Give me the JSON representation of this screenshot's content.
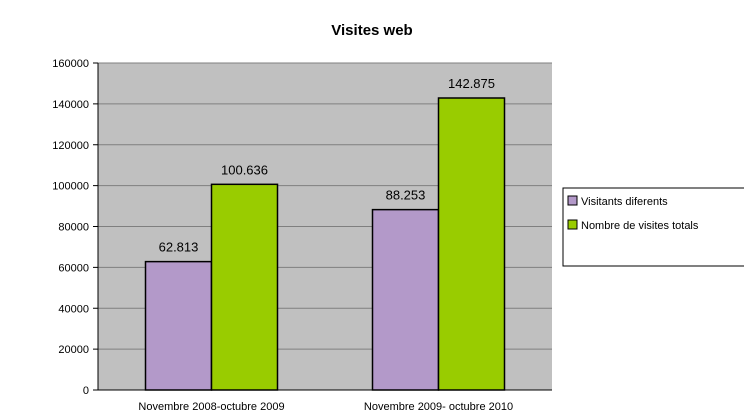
{
  "chart_data": {
    "type": "bar",
    "title": "Visites web",
    "categories": [
      "Novembre 2008-octubre 2009",
      "Novembre 2009- octubre 2010"
    ],
    "series": [
      {
        "name": "Visitants diferents",
        "values": [
          62813,
          88253
        ],
        "labels": [
          "62.813",
          "88.253"
        ],
        "color": "#b399c9"
      },
      {
        "name": "Nombre de visites totals",
        "values": [
          100636,
          142875
        ],
        "labels": [
          "100.636",
          "142.875"
        ],
        "color": "#99cc00"
      }
    ],
    "ylim": [
      0,
      160000
    ],
    "yticks": [
      "0",
      "20000",
      "40000",
      "60000",
      "80000",
      "100000",
      "120000",
      "140000",
      "160000"
    ],
    "grid": true,
    "plot_background": "#c0c0c0",
    "legend_position": "right"
  }
}
